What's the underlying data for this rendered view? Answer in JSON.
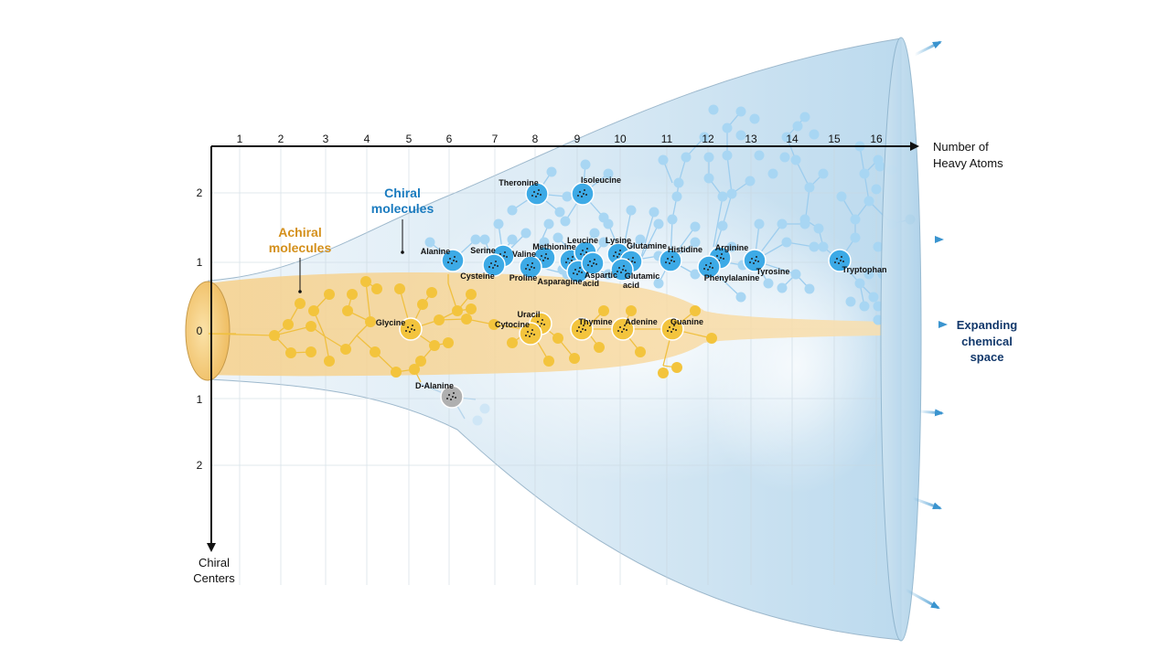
{
  "colors": {
    "chiral": "#1a7bbf",
    "achiral": "#d4901c",
    "blue_node": "#a8d6f3",
    "blue_key": "#3daae6",
    "gold_node": "#f3c43d",
    "gray_node": "#b0b0b0",
    "expanding": "#12386b",
    "axis": "#111111"
  },
  "axes": {
    "x_title_line1": "Number of",
    "x_title_line2": "Heavy Atoms",
    "y_title_line1": "Chiral",
    "y_title_line2": "Centers",
    "x_ticks": [
      "1",
      "2",
      "3",
      "4",
      "5",
      "6",
      "7",
      "8",
      "9",
      "10",
      "11",
      "12",
      "13",
      "14",
      "15",
      "16"
    ],
    "y_ticks_up": [
      "2",
      "1"
    ],
    "y_tick_zero": "0",
    "y_ticks_down": [
      "1",
      "2"
    ]
  },
  "categories": {
    "chiral_line1": "Chiral",
    "chiral_line2": "molecules",
    "achiral_line1": "Achiral",
    "achiral_line2": "molecules"
  },
  "expanding": {
    "line1": "Expanding",
    "line2": "chemical",
    "line3": "space"
  },
  "molecules": {
    "threonine": "Theronine",
    "isoleucine": "Isoleucine",
    "alanine": "Alanine",
    "serine": "Serine",
    "valine": "Valine",
    "cysteine": "Cysteine",
    "methionine": "Methionine",
    "proline": "Proline",
    "leucine": "Leucine",
    "asparagine": "Asparagine",
    "aspartic_1": "Aspartic",
    "aspartic_2": "acid",
    "lysine": "Lysine",
    "glutamine": "Glutamine",
    "glutamic_1": "Glutamic",
    "glutamic_2": "acid",
    "histidine": "Histidine",
    "arginine": "Arginine",
    "phenylalanine": "Phenylalanine",
    "tyrosine": "Tyrosine",
    "tryptophan": "Tryptophan",
    "glycine": "Glycine",
    "uracil": "Uracil",
    "cytocine": "Cytocine",
    "thymine": "Thymine",
    "adenine": "Adenine",
    "guanine": "Guanine",
    "d_alanine": "D-Alanine"
  }
}
